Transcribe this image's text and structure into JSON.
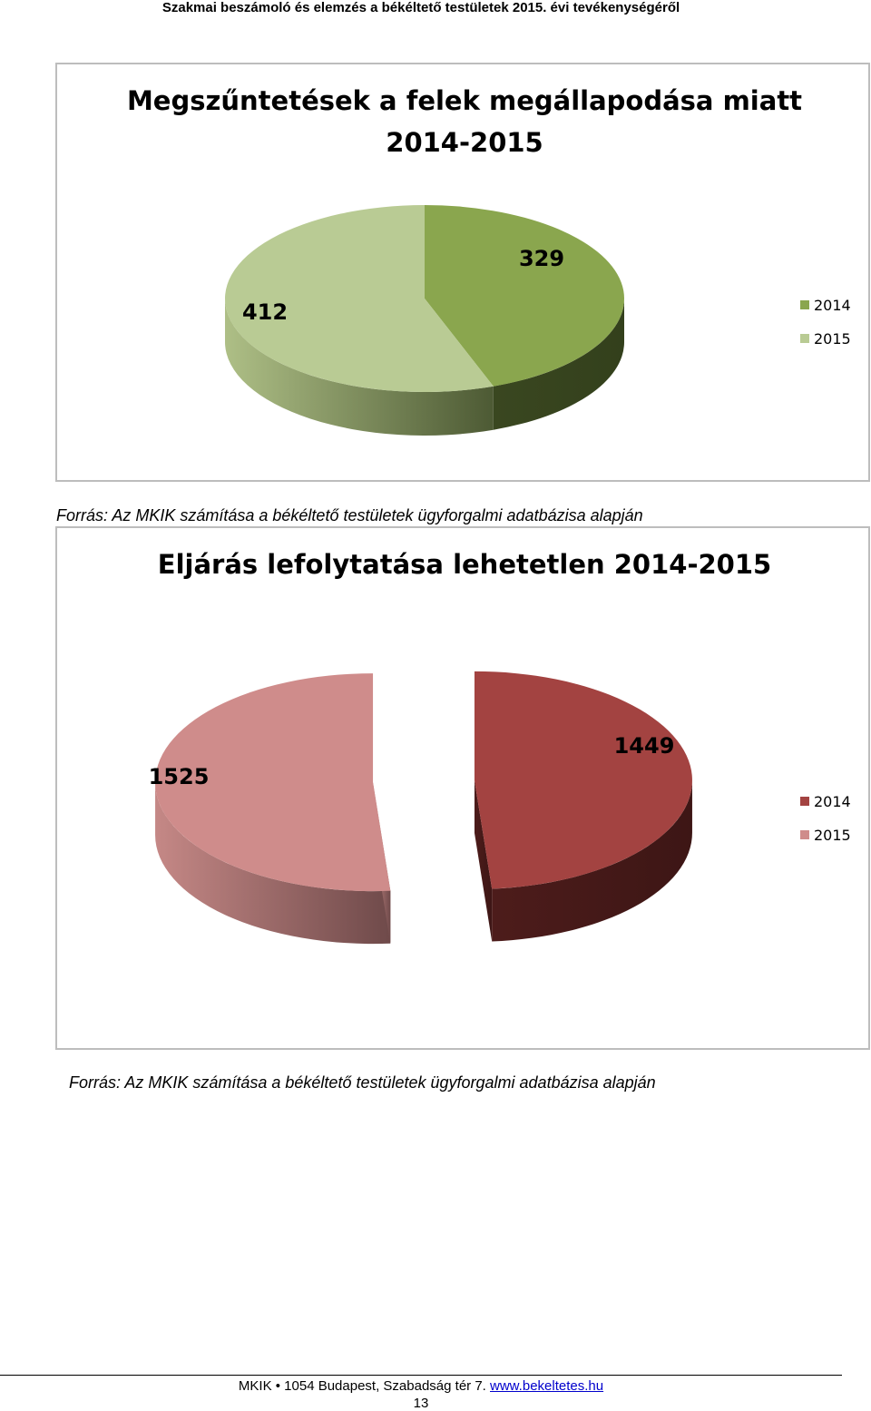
{
  "header": {
    "text": "Szakmai beszámoló és elemzés a békéltető testületek 2015. évi tevékenységéről"
  },
  "charts": {
    "chart1": {
      "title_line1": "Megszűntetések a felek megállapodása miatt",
      "title_line2": "2014-2015"
    },
    "chart2": {
      "title": "Eljárás lefolytatása lehetetlen 2014-2015"
    }
  },
  "chart_data": [
    {
      "type": "pie",
      "title": "Megszűntetések a felek megállapodása miatt 2014-2015",
      "categories": [
        "2014",
        "2015"
      ],
      "values": [
        329,
        412
      ],
      "colors": [
        "#8aa64e",
        "#b9cb94"
      ],
      "data_labels": [
        "329",
        "412"
      ],
      "legend": [
        "2014",
        "2015"
      ],
      "legend_position": "right",
      "style": "3d",
      "exploded": false
    },
    {
      "type": "pie",
      "title": "Eljárás lefolytatása lehetetlen 2014-2015",
      "categories": [
        "2014",
        "2015"
      ],
      "values": [
        1449,
        1525
      ],
      "colors": [
        "#a34341",
        "#cf8c8b"
      ],
      "data_labels": [
        "1449",
        "1525"
      ],
      "legend": [
        "2014",
        "2015"
      ],
      "legend_position": "right",
      "style": "3d",
      "exploded": true
    }
  ],
  "captions": {
    "source1": "Forrás: Az MKIK számítása a békéltető testületek ügyforgalmi adatbázisa alapján",
    "source2": "Forrás: Az MKIK számítása a békéltető testületek ügyforgalmi adatbázisa alapján"
  },
  "footer": {
    "address": "MKIK • 1054 Budapest, Szabadság tér 7.",
    "website": "www.bekeltetes.hu",
    "page_number": "13"
  }
}
